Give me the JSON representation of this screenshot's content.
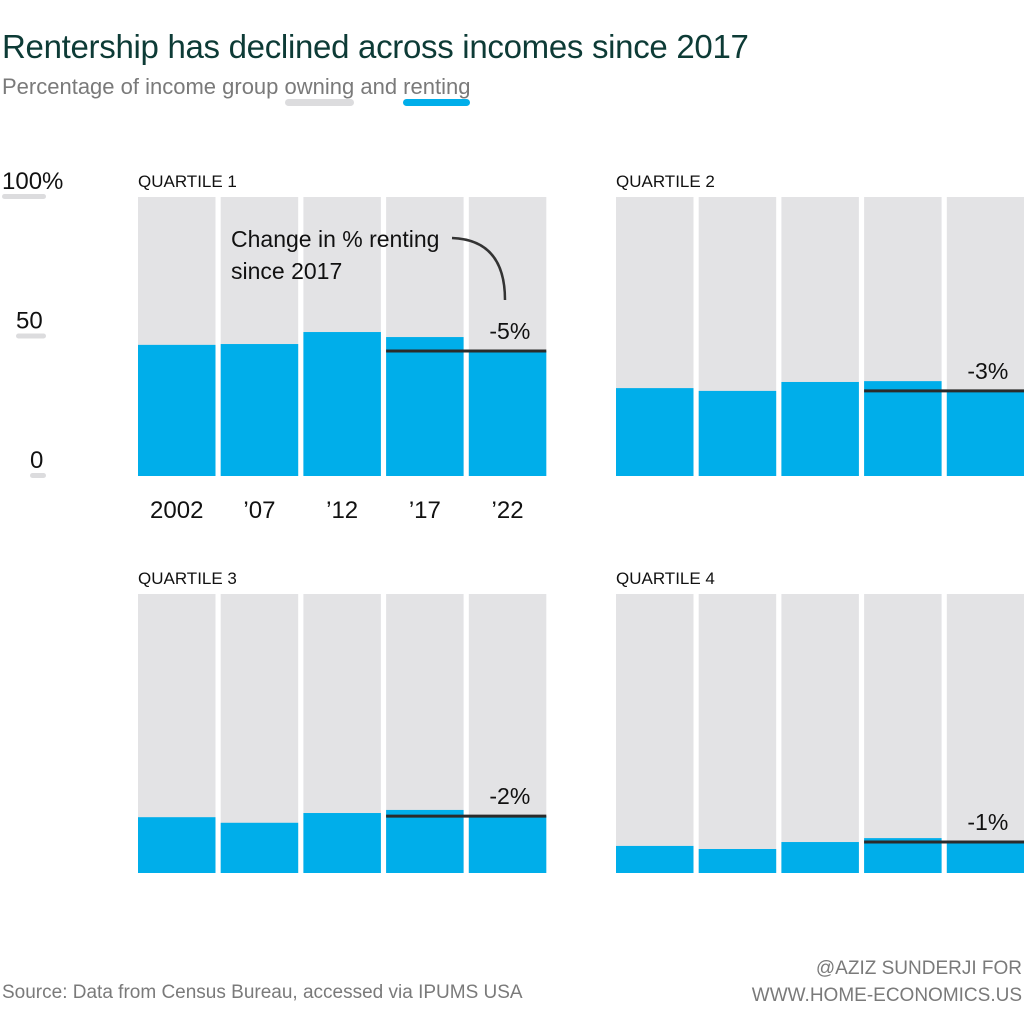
{
  "title": "Rentership has declined across incomes since 2017",
  "subtitle": {
    "prefix": "Percentage of income group ",
    "owning": "owning",
    "and": " and ",
    "renting": "renting"
  },
  "colors": {
    "owning": "#e3e3e5",
    "renting": "#00aeea",
    "line": "#2b2b2b"
  },
  "annotation": {
    "line1": "Change in % renting",
    "line2": "since 2017"
  },
  "source": "Source: Data from Census Bureau, accessed via IPUMS USA",
  "credit": {
    "line1": "@AZIZ SUNDERJI FOR",
    "line2": "WWW.HOME-ECONOMICS.US"
  },
  "chart_data": {
    "type": "bar",
    "categories": [
      "2002",
      "’07",
      "’12",
      "’17",
      "’22"
    ],
    "ylim": [
      0,
      100
    ],
    "yticks": [
      "100%",
      "50",
      "0"
    ],
    "panels": [
      {
        "name": "QUARTILE 1",
        "values": [
          47,
          47.3,
          51.6,
          49.8,
          44.8
        ],
        "change": "-5%"
      },
      {
        "name": "QUARTILE 2",
        "values": [
          31.5,
          30.5,
          33.7,
          34,
          30.5
        ],
        "change": "-3%"
      },
      {
        "name": "QUARTILE 3",
        "values": [
          20,
          18,
          21.5,
          22.6,
          20.4
        ],
        "change": "-2%"
      },
      {
        "name": "QUARTILE 4",
        "values": [
          9.7,
          8.6,
          11.1,
          12.5,
          11.1
        ],
        "change": "-1%"
      }
    ]
  }
}
